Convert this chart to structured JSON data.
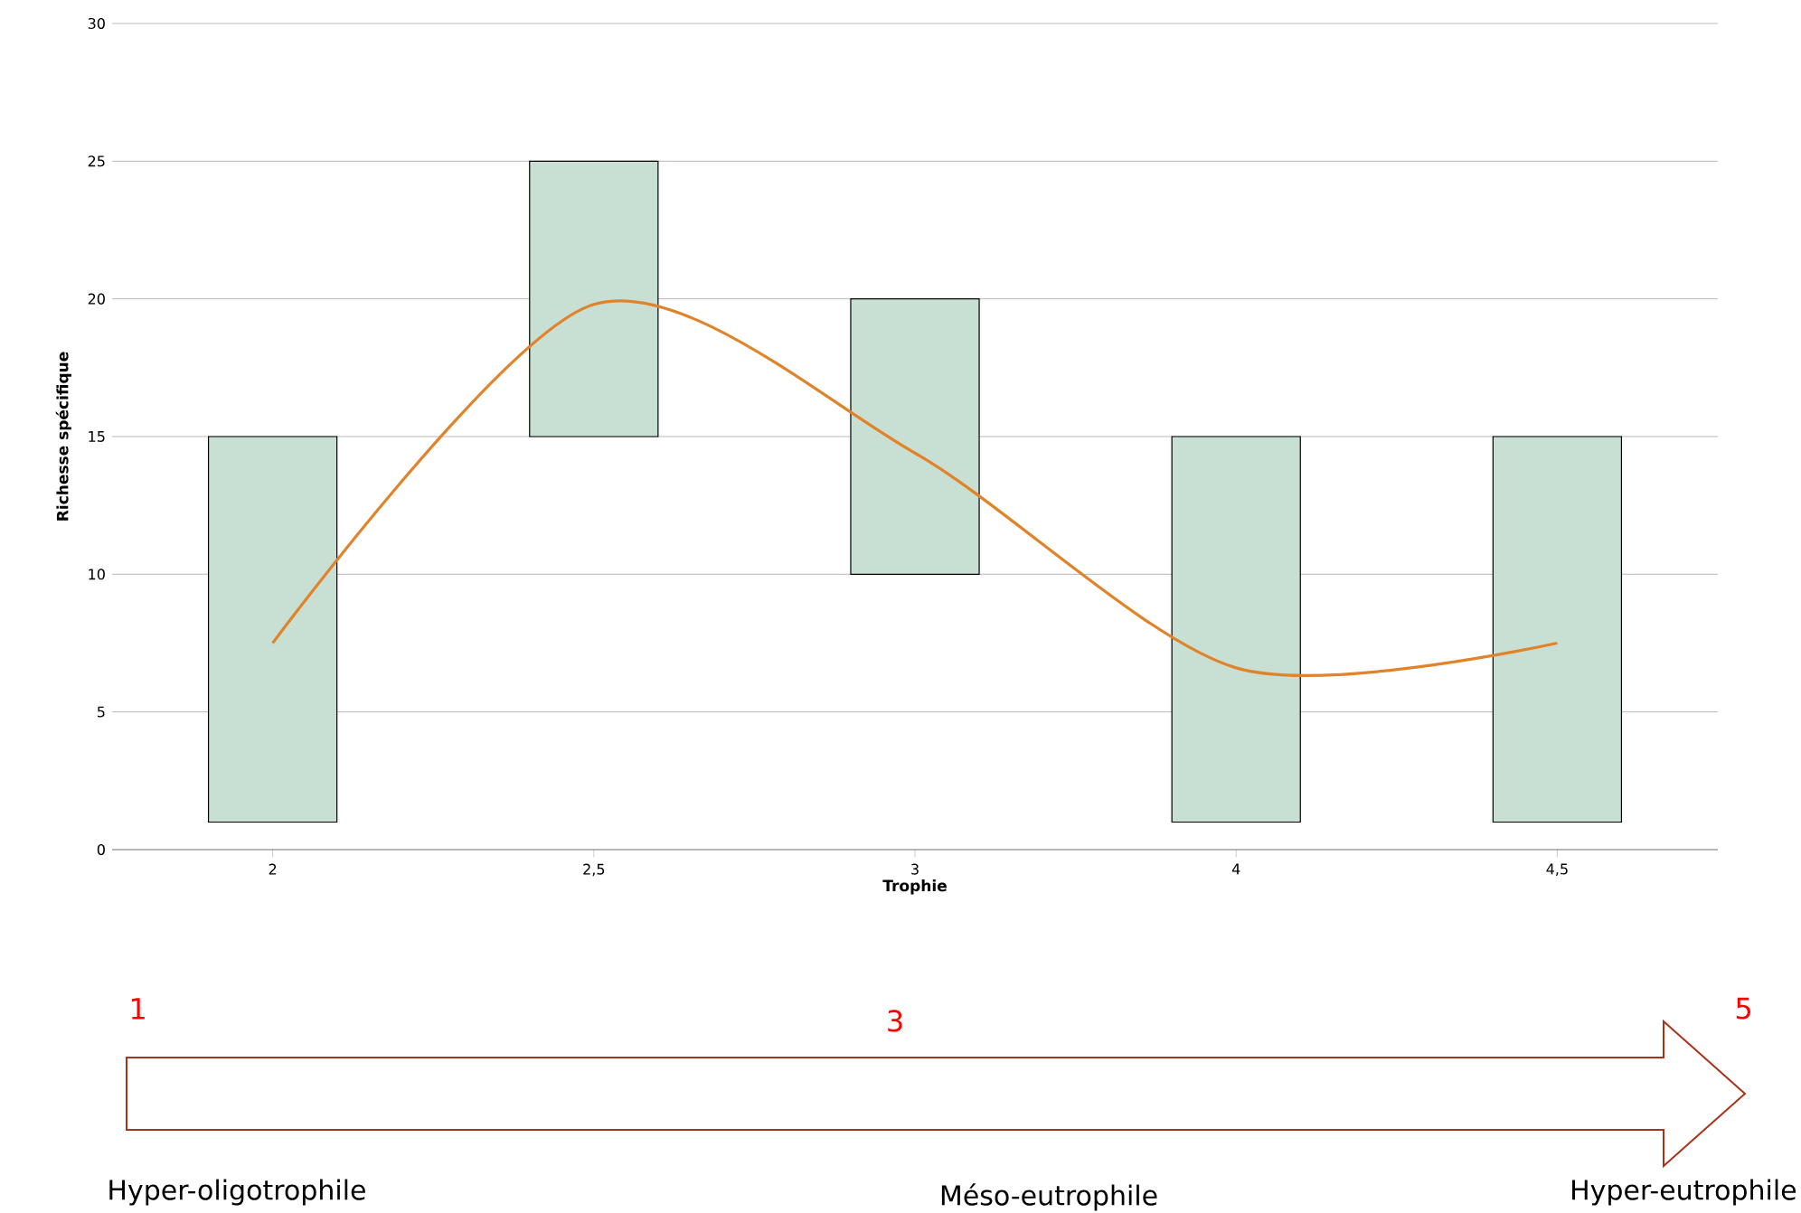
{
  "chart_data": {
    "type": "bar",
    "xlabel": "Trophie",
    "ylabel": "Richesse spécifique",
    "categories": [
      "2",
      "2,5",
      "3",
      "4",
      "4,5"
    ],
    "ylim": [
      0,
      30
    ],
    "yticks": [
      0,
      5,
      10,
      15,
      20,
      25,
      30
    ],
    "grid": "y",
    "series": [
      {
        "color": "#c8e0d4",
        "base": [
          1,
          15,
          10,
          1,
          1
        ],
        "values": [
          14,
          10,
          10,
          14,
          14
        ]
      },
      {
        "type": "line",
        "color": "#e0832a",
        "marker": "none",
        "line_style": "solid",
        "values": [
          7.5,
          19.8,
          14.4,
          6.6,
          7.5
        ]
      }
    ],
    "annotations": [
      "1",
      "3",
      "5",
      "Hyper-oligotrophile",
      "Méso-eutrophile",
      "Hyper-eutrophile"
    ]
  }
}
